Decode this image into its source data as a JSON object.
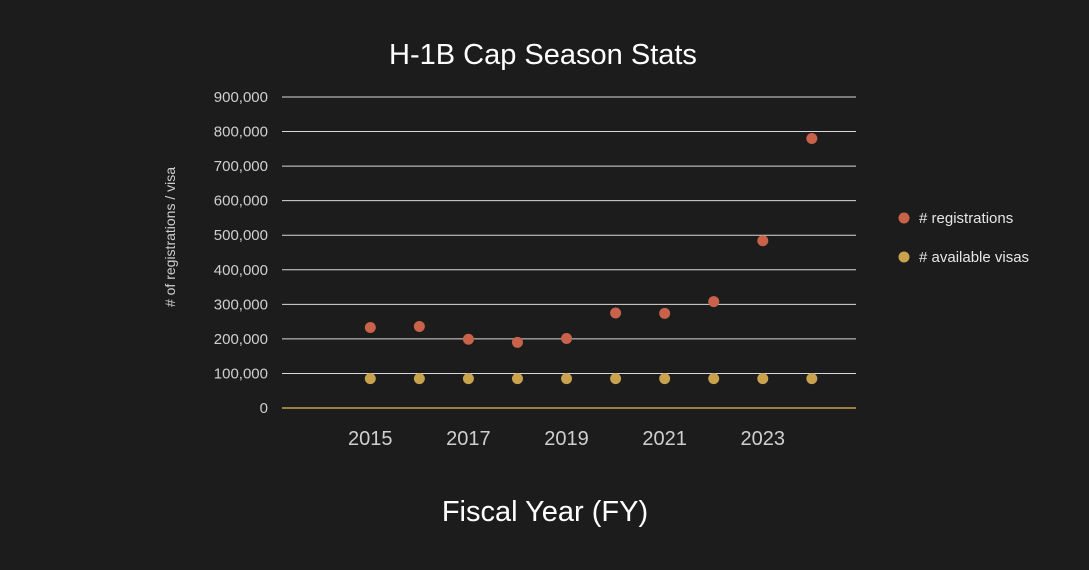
{
  "chart_data": {
    "type": "scatter",
    "title": "H-1B Cap Season Stats",
    "xlabel": "Fiscal Year (FY)",
    "ylabel": "# of registrations / visa",
    "x": [
      2015,
      2016,
      2017,
      2018,
      2019,
      2020,
      2021,
      2022,
      2023,
      2024
    ],
    "xticks": [
      2015,
      2017,
      2019,
      2021,
      2023
    ],
    "xlim": [
      2013.2,
      2024.9
    ],
    "ylim": [
      0,
      900000
    ],
    "yticks": [
      0,
      100000,
      200000,
      300000,
      400000,
      500000,
      600000,
      700000,
      800000,
      900000
    ],
    "ytick_labels": [
      "0",
      "100,000",
      "200,000",
      "300,000",
      "400,000",
      "500,000",
      "600,000",
      "700,000",
      "800,000",
      "900,000"
    ],
    "grid": true,
    "legend_position": "right",
    "series": [
      {
        "name": "# registrations",
        "color": "#c8624a",
        "values": [
          233000,
          236000,
          199000,
          190000,
          201000,
          275000,
          274000,
          308000,
          484000,
          780000
        ]
      },
      {
        "name": "# available visas",
        "color": "#c9a24e",
        "values": [
          85000,
          85000,
          85000,
          85000,
          85000,
          85000,
          85000,
          85000,
          85000,
          85000
        ]
      }
    ]
  }
}
